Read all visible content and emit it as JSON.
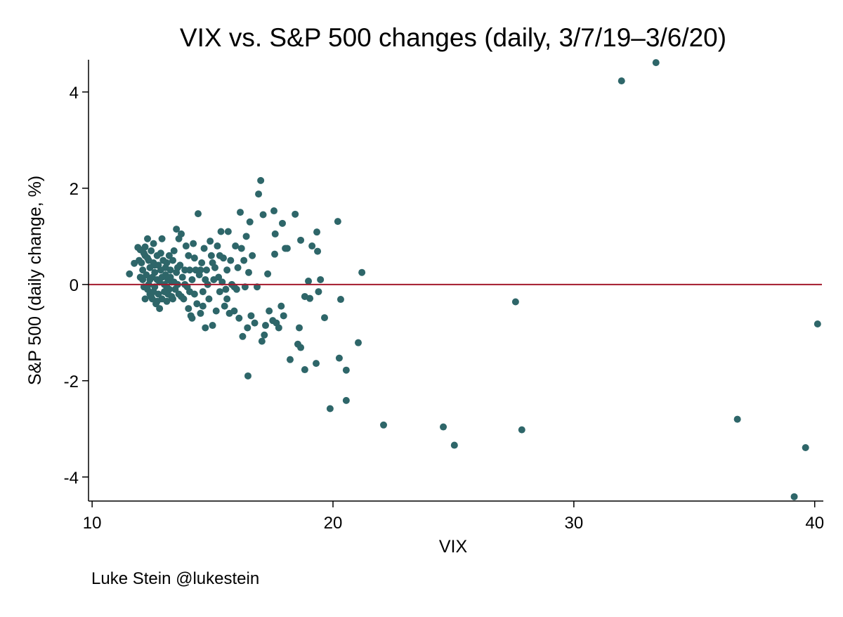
{
  "chart_data": {
    "type": "scatter",
    "title": "VIX vs. S&P 500 changes (daily, 3/7/19–3/6/20)",
    "xlabel": "VIX",
    "ylabel": "S&P 500 (daily change, %)",
    "xlim": [
      9.85,
      40.3
    ],
    "ylim": [
      -4.5,
      4.67
    ],
    "xticks": [
      10,
      20,
      30,
      40
    ],
    "yticks": [
      -4,
      -2,
      0,
      2,
      4
    ],
    "xtick_labels": [
      "10",
      "20",
      "30",
      "40"
    ],
    "ytick_labels": [
      "-4",
      "-2",
      "0",
      "2",
      "4"
    ],
    "reference_line_y": 0,
    "grid": false,
    "colors": {
      "points": "#2e6669",
      "reference_line": "#a3192c"
    },
    "credit": "Luke Stein @lukestein",
    "points": [
      [
        31.98,
        4.23
      ],
      [
        33.41,
        4.61
      ],
      [
        27.58,
        -0.36
      ],
      [
        40.12,
        -0.82
      ],
      [
        36.79,
        -2.8
      ],
      [
        39.62,
        -3.39
      ],
      [
        39.15,
        -4.41
      ],
      [
        27.84,
        -3.02
      ],
      [
        24.58,
        -2.96
      ],
      [
        25.04,
        -3.34
      ],
      [
        22.1,
        -2.92
      ],
      [
        19.88,
        -2.58
      ],
      [
        20.55,
        -2.41
      ],
      [
        16.47,
        -1.9
      ],
      [
        21.2,
        0.25
      ],
      [
        20.2,
        1.31
      ],
      [
        17.0,
        2.16
      ],
      [
        16.91,
        1.88
      ],
      [
        18.43,
        1.46
      ],
      [
        17.55,
        1.53
      ],
      [
        20.26,
        -1.53
      ],
      [
        20.55,
        -1.78
      ],
      [
        21.05,
        -1.21
      ],
      [
        20.32,
        -0.31
      ],
      [
        19.3,
        -1.64
      ],
      [
        18.83,
        -1.77
      ],
      [
        18.22,
        -1.56
      ],
      [
        18.66,
        -1.31
      ],
      [
        18.54,
        -1.24
      ],
      [
        19.65,
        -0.69
      ],
      [
        19.48,
        0.1
      ],
      [
        19.33,
        1.09
      ],
      [
        19.36,
        0.69
      ],
      [
        19.13,
        0.8
      ],
      [
        18.98,
        0.07
      ],
      [
        19.04,
        -0.29
      ],
      [
        18.83,
        -0.25
      ],
      [
        18.66,
        0.92
      ],
      [
        18.02,
        0.75
      ],
      [
        17.9,
        1.27
      ],
      [
        17.58,
        0.63
      ],
      [
        17.29,
        0.22
      ],
      [
        19.4,
        -0.15
      ],
      [
        17.6,
        1.05
      ],
      [
        17.1,
        1.45
      ],
      [
        11.55,
        0.22
      ],
      [
        11.75,
        0.44
      ],
      [
        11.9,
        0.77
      ],
      [
        12.0,
        0.72
      ],
      [
        12.05,
        0.45
      ],
      [
        12.1,
        0.3
      ],
      [
        12.1,
        0.1
      ],
      [
        12.15,
        -0.05
      ],
      [
        12.2,
        0.6
      ],
      [
        12.2,
        0.78
      ],
      [
        12.25,
        0.2
      ],
      [
        12.3,
        -0.1
      ],
      [
        12.3,
        0.95
      ],
      [
        12.35,
        0.5
      ],
      [
        12.35,
        0.0
      ],
      [
        12.4,
        -0.2
      ],
      [
        12.4,
        0.35
      ],
      [
        12.45,
        0.7
      ],
      [
        12.5,
        0.15
      ],
      [
        12.5,
        -0.3
      ],
      [
        12.55,
        0.85
      ],
      [
        12.55,
        0.45
      ],
      [
        12.6,
        -0.05
      ],
      [
        12.6,
        0.25
      ],
      [
        12.65,
        -0.4
      ],
      [
        12.7,
        0.6
      ],
      [
        12.7,
        0.1
      ],
      [
        12.75,
        -0.2
      ],
      [
        12.75,
        0.4
      ],
      [
        12.8,
        -0.5
      ],
      [
        12.8,
        0.05
      ],
      [
        12.85,
        0.3
      ],
      [
        12.9,
        -0.3
      ],
      [
        12.9,
        0.95
      ],
      [
        12.95,
        0.5
      ],
      [
        13.0,
        0.0
      ],
      [
        13.0,
        -0.15
      ],
      [
        13.05,
        0.2
      ],
      [
        13.1,
        0.45
      ],
      [
        13.1,
        -0.35
      ],
      [
        13.15,
        0.1
      ],
      [
        13.2,
        -0.1
      ],
      [
        13.2,
        0.6
      ],
      [
        13.25,
        0.3
      ],
      [
        13.3,
        -0.25
      ],
      [
        13.3,
        0.05
      ],
      [
        13.35,
        0.5
      ],
      [
        13.4,
        0.7
      ],
      [
        13.45,
        -0.1
      ],
      [
        13.5,
        0.25
      ],
      [
        13.5,
        1.15
      ],
      [
        13.55,
        0.0
      ],
      [
        13.6,
        -0.2
      ],
      [
        13.6,
        0.95
      ],
      [
        13.65,
        0.4
      ],
      [
        13.7,
        1.05
      ],
      [
        13.75,
        0.15
      ],
      [
        13.8,
        -0.3
      ],
      [
        13.85,
        0.3
      ],
      [
        13.9,
        0.8
      ],
      [
        13.95,
        -0.05
      ],
      [
        14.0,
        0.6
      ],
      [
        14.0,
        -0.5
      ],
      [
        14.05,
        0.3
      ],
      [
        14.1,
        -0.65
      ],
      [
        14.15,
        0.1
      ],
      [
        14.2,
        0.85
      ],
      [
        14.25,
        -0.2
      ],
      [
        14.3,
        0.3
      ],
      [
        14.35,
        -0.4
      ],
      [
        14.4,
        1.47
      ],
      [
        14.45,
        0.2
      ],
      [
        14.5,
        -0.6
      ],
      [
        14.55,
        0.45
      ],
      [
        14.6,
        -0.15
      ],
      [
        14.65,
        0.75
      ],
      [
        14.7,
        -0.9
      ],
      [
        14.75,
        0.3
      ],
      [
        14.8,
        0.0
      ],
      [
        14.85,
        -0.3
      ],
      [
        14.9,
        0.9
      ],
      [
        14.95,
        0.6
      ],
      [
        15.0,
        -0.85
      ],
      [
        15.05,
        0.1
      ],
      [
        15.1,
        0.35
      ],
      [
        15.15,
        -0.55
      ],
      [
        15.2,
        0.8
      ],
      [
        15.25,
        0.15
      ],
      [
        15.3,
        -0.15
      ],
      [
        15.35,
        1.1
      ],
      [
        15.4,
        0.05
      ],
      [
        15.45,
        0.55
      ],
      [
        15.5,
        -0.45
      ],
      [
        15.55,
        -0.1
      ],
      [
        15.6,
        0.3
      ],
      [
        15.65,
        1.1
      ],
      [
        15.7,
        -0.6
      ],
      [
        15.75,
        0.5
      ],
      [
        15.8,
        0.0
      ],
      [
        15.9,
        -0.05
      ],
      [
        15.95,
        0.8
      ],
      [
        16.0,
        -0.1
      ],
      [
        16.05,
        0.35
      ],
      [
        16.1,
        -0.7
      ],
      [
        16.15,
        1.5
      ],
      [
        16.2,
        0.75
      ],
      [
        16.25,
        -1.08
      ],
      [
        16.3,
        0.5
      ],
      [
        16.35,
        -0.05
      ],
      [
        16.4,
        1.0
      ],
      [
        16.45,
        -0.9
      ],
      [
        16.5,
        0.25
      ],
      [
        16.55,
        1.3
      ],
      [
        16.6,
        -0.65
      ],
      [
        16.65,
        0.6
      ],
      [
        16.75,
        -0.8
      ],
      [
        16.85,
        -0.05
      ],
      [
        17.05,
        -1.18
      ],
      [
        17.15,
        -1.05
      ],
      [
        17.2,
        -0.85
      ],
      [
        17.35,
        -0.55
      ],
      [
        17.5,
        -0.75
      ],
      [
        17.65,
        -0.8
      ],
      [
        17.75,
        -0.9
      ],
      [
        17.85,
        -0.45
      ],
      [
        17.95,
        -0.65
      ],
      [
        18.1,
        0.75
      ],
      [
        18.6,
        -0.9
      ],
      [
        12.2,
        -0.3
      ],
      [
        12.3,
        0.55
      ],
      [
        12.45,
        -0.25
      ],
      [
        12.6,
        0.4
      ],
      [
        12.7,
        -0.35
      ],
      [
        12.85,
        0.65
      ],
      [
        13.05,
        0.35
      ],
      [
        13.15,
        -0.2
      ],
      [
        13.25,
        0.15
      ],
      [
        13.4,
        0.05
      ],
      [
        13.55,
        0.35
      ],
      [
        13.7,
        -0.25
      ],
      [
        13.85,
        0.0
      ],
      [
        14.05,
        -0.15
      ],
      [
        14.25,
        0.55
      ],
      [
        14.5,
        0.3
      ],
      [
        14.7,
        0.1
      ],
      [
        15.0,
        0.45
      ],
      [
        15.3,
        0.6
      ],
      [
        15.6,
        -0.3
      ],
      [
        11.95,
        0.5
      ],
      [
        12.0,
        0.15
      ],
      [
        12.15,
        0.65
      ],
      [
        12.4,
        0.1
      ],
      [
        12.55,
        -0.15
      ],
      [
        12.9,
        0.15
      ],
      [
        13.1,
        -0.05
      ],
      [
        13.35,
        -0.3
      ],
      [
        14.15,
        -0.7
      ],
      [
        14.6,
        -0.45
      ],
      [
        15.9,
        -0.55
      ]
    ]
  }
}
